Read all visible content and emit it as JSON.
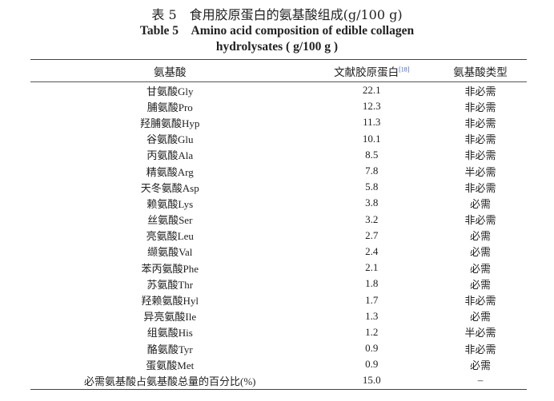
{
  "title_cn": "表 5　食用胶原蛋白的氨基酸组成(g/100 g)",
  "title_en_line1": "Table 5　Amino acid composition of edible collagen",
  "title_en_line2": "hydrolysates ( g/100 g )",
  "headers": {
    "col1": "氨基酸",
    "col2": "文献胶原蛋白",
    "col2_ref": "[18]",
    "col3": "氨基酸类型"
  },
  "rows": [
    [
      "甘氨酸Gly",
      "22.1",
      "非必需"
    ],
    [
      "脯氨酸Pro",
      "12.3",
      "非必需"
    ],
    [
      "羟脯氨酸Hyp",
      "11.3",
      "非必需"
    ],
    [
      "谷氨酸Glu",
      "10.1",
      "非必需"
    ],
    [
      "丙氨酸Ala",
      "8.5",
      "非必需"
    ],
    [
      "精氨酸Arg",
      "7.8",
      "半必需"
    ],
    [
      "天冬氨酸Asp",
      "5.8",
      "非必需"
    ],
    [
      "赖氨酸Lys",
      "3.8",
      "必需"
    ],
    [
      "丝氨酸Ser",
      "3.2",
      "非必需"
    ],
    [
      "亮氨酸Leu",
      "2.7",
      "必需"
    ],
    [
      "缬氨酸Val",
      "2.4",
      "必需"
    ],
    [
      "苯丙氨酸Phe",
      "2.1",
      "必需"
    ],
    [
      "苏氨酸Thr",
      "1.8",
      "必需"
    ],
    [
      "羟赖氨酸Hyl",
      "1.7",
      "非必需"
    ],
    [
      "异亮氨酸Ile",
      "1.3",
      "必需"
    ],
    [
      "组氨酸His",
      "1.2",
      "半必需"
    ],
    [
      "酪氨酸Tyr",
      "0.9",
      "非必需"
    ],
    [
      "蛋氨酸Met",
      "0.9",
      "必需"
    ],
    [
      "必需氨基酸占氨基酸总量的百分比(%)",
      "15.0",
      "–"
    ]
  ]
}
